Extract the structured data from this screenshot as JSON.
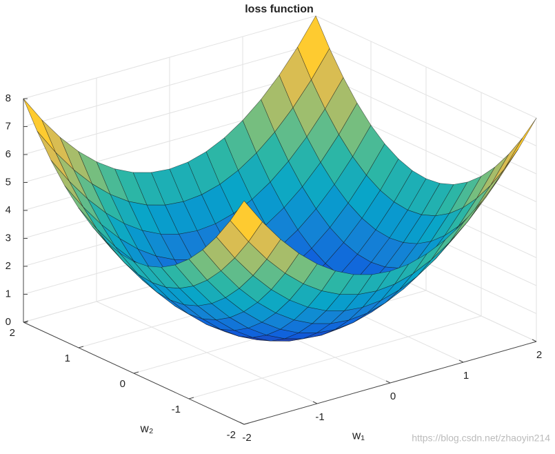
{
  "chart_data": {
    "type": "surface",
    "title": "loss function",
    "xlabel": "w₁",
    "ylabel": "w₂",
    "watermark": "https://blog.csdn.net/zhaoyin214",
    "x": [
      -2,
      -1.75,
      -1.5,
      -1.25,
      -1,
      -0.75,
      -0.5,
      -0.25,
      0,
      0.25,
      0.5,
      0.75,
      1,
      1.25,
      1.5,
      1.75,
      2
    ],
    "y": [
      -2,
      -1.75,
      -1.5,
      -1.25,
      -1,
      -0.75,
      -0.5,
      -0.25,
      0,
      0.25,
      0.5,
      0.75,
      1,
      1.25,
      1.5,
      1.75,
      2
    ],
    "z": [
      [
        8,
        7.0625,
        6.25,
        5.5625,
        5,
        4.5625,
        4.25,
        4.0625,
        4,
        4.0625,
        4.25,
        4.5625,
        5,
        5.5625,
        6.25,
        7.0625,
        8
      ],
      [
        7.0625,
        6.125,
        5.3125,
        4.625,
        4.0625,
        3.625,
        3.3125,
        3.125,
        3.0625,
        3.125,
        3.3125,
        3.625,
        4.0625,
        4.625,
        5.3125,
        6.125,
        7.0625
      ],
      [
        6.25,
        5.3125,
        4.5,
        3.8125,
        3.25,
        2.8125,
        2.5,
        2.3125,
        2.25,
        2.3125,
        2.5,
        2.8125,
        3.25,
        3.8125,
        4.5,
        5.3125,
        6.25
      ],
      [
        5.5625,
        4.625,
        3.8125,
        3.125,
        2.5625,
        2.125,
        1.8125,
        1.625,
        1.5625,
        1.625,
        1.8125,
        2.125,
        2.5625,
        3.125,
        3.8125,
        4.625,
        5.5625
      ],
      [
        5,
        4.0625,
        3.25,
        2.5625,
        2,
        1.5625,
        1.25,
        1.0625,
        1,
        1.0625,
        1.25,
        1.5625,
        2,
        2.5625,
        3.25,
        4.0625,
        5
      ],
      [
        4.5625,
        3.625,
        2.8125,
        2.125,
        1.5625,
        1.125,
        0.8125,
        0.625,
        0.5625,
        0.625,
        0.8125,
        1.125,
        1.5625,
        2.125,
        2.8125,
        3.625,
        4.5625
      ],
      [
        4.25,
        3.3125,
        2.5,
        1.8125,
        1.25,
        0.8125,
        0.5,
        0.3125,
        0.25,
        0.3125,
        0.5,
        0.8125,
        1.25,
        1.8125,
        2.5,
        3.3125,
        4.25
      ],
      [
        4.0625,
        3.125,
        2.3125,
        1.625,
        1.0625,
        0.625,
        0.3125,
        0.125,
        0.0625,
        0.125,
        0.3125,
        0.625,
        1.0625,
        1.625,
        2.3125,
        3.125,
        4.0625
      ],
      [
        4,
        3.0625,
        2.25,
        1.5625,
        1,
        0.5625,
        0.25,
        0.0625,
        0,
        0.0625,
        0.25,
        0.5625,
        1,
        1.5625,
        2.25,
        3.0625,
        4
      ],
      [
        4.0625,
        3.125,
        2.3125,
        1.625,
        1.0625,
        0.625,
        0.3125,
        0.125,
        0.0625,
        0.125,
        0.3125,
        0.625,
        1.0625,
        1.625,
        2.3125,
        3.125,
        4.0625
      ],
      [
        4.25,
        3.3125,
        2.5,
        1.8125,
        1.25,
        0.8125,
        0.5,
        0.3125,
        0.25,
        0.3125,
        0.5,
        0.8125,
        1.25,
        1.8125,
        2.5,
        3.3125,
        4.25
      ],
      [
        4.5625,
        3.625,
        2.8125,
        2.125,
        1.5625,
        1.125,
        0.8125,
        0.625,
        0.5625,
        0.625,
        0.8125,
        1.125,
        1.5625,
        2.125,
        2.8125,
        3.625,
        4.5625
      ],
      [
        5,
        4.0625,
        3.25,
        2.5625,
        2,
        1.5625,
        1.25,
        1.0625,
        1,
        1.0625,
        1.25,
        1.5625,
        2,
        2.5625,
        3.25,
        4.0625,
        5
      ],
      [
        5.5625,
        4.625,
        3.8125,
        3.125,
        2.5625,
        2.125,
        1.8125,
        1.625,
        1.5625,
        1.625,
        1.8125,
        2.125,
        2.5625,
        3.125,
        3.8125,
        4.625,
        5.5625
      ],
      [
        6.25,
        5.3125,
        4.5,
        3.8125,
        3.25,
        2.8125,
        2.5,
        2.3125,
        2.25,
        2.3125,
        2.5,
        2.8125,
        3.25,
        3.8125,
        4.5,
        5.3125,
        6.25
      ],
      [
        7.0625,
        6.125,
        5.3125,
        4.625,
        4.0625,
        3.625,
        3.3125,
        3.125,
        3.0625,
        3.125,
        3.3125,
        3.625,
        4.0625,
        4.625,
        5.3125,
        6.125,
        7.0625
      ],
      [
        8,
        7.0625,
        6.25,
        5.5625,
        5,
        4.5625,
        4.25,
        4.0625,
        4,
        4.0625,
        4.25,
        4.5625,
        5,
        5.5625,
        6.25,
        7.0625,
        8
      ]
    ],
    "xlim": [
      -2,
      2
    ],
    "ylim": [
      -2,
      2
    ],
    "zlim": [
      0,
      8
    ],
    "xticks": [
      -2,
      -1,
      0,
      1,
      2
    ],
    "yticks": [
      -2,
      -1,
      0,
      1,
      2
    ],
    "zticks": [
      0,
      1,
      2,
      3,
      4,
      5,
      6,
      7,
      8
    ],
    "grid": true,
    "colormap": [
      "#352A87",
      "#0F5CDD",
      "#1481D6",
      "#06A4CA",
      "#2EB7A4",
      "#87BF77",
      "#D1BB59",
      "#FEC832",
      "#F9FB0E"
    ]
  }
}
